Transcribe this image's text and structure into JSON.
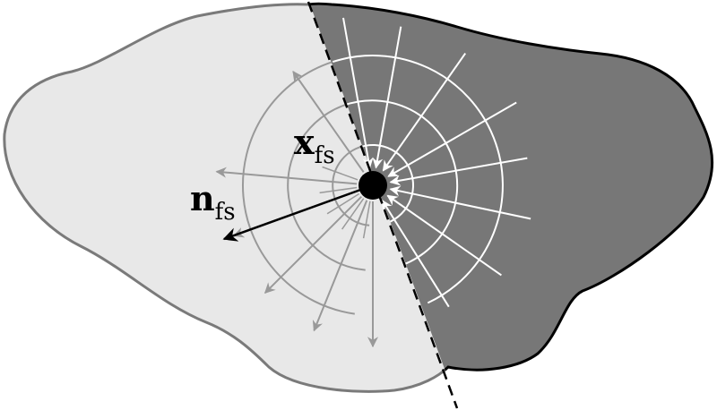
{
  "diagram": {
    "labels": {
      "point": {
        "main": "x",
        "sub": "fs"
      },
      "normal": {
        "main": "n",
        "sub": "fs"
      }
    },
    "regions": {
      "left": {
        "name": "light-region",
        "fill": "#e8e8e8",
        "stroke": "#7a7a7a"
      },
      "right": {
        "name": "dark-region",
        "fill": "#777777",
        "stroke": "#000000"
      }
    },
    "interface_line": {
      "style": "dashed",
      "color": "#000000"
    },
    "field_lines": {
      "left": {
        "color": "#999999",
        "direction": "outward"
      },
      "right": {
        "color": "#ffffff",
        "direction": "inward"
      }
    },
    "point_color": "#000000"
  }
}
